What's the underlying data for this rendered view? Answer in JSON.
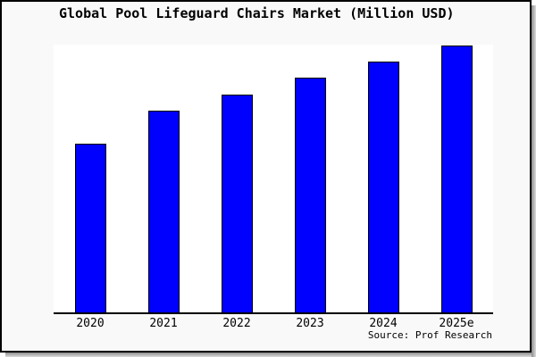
{
  "chart_data": {
    "type": "bar",
    "title": "Global Pool Lifeguard Chairs Market (Million USD)",
    "categories": [
      "2020",
      "2021",
      "2022",
      "2023",
      "2024",
      "2025e"
    ],
    "values": [
      63.2,
      75.5,
      81.8,
      88,
      94,
      100
    ],
    "value_basis": "relative units estimated from bar heights; 2025e = 100 (no y-axis shown)",
    "xlabel": "",
    "ylabel": "",
    "ylim": [
      0,
      100
    ],
    "grid": false,
    "legend": "none",
    "bar_color": "#0000ff",
    "bar_border_color": "#000000"
  },
  "source": {
    "text": "Source: Prof Research"
  },
  "colors": {
    "figure_background": "#f9f9f9",
    "plot_background": "#ffffff",
    "frame_border": "#000000",
    "axis_line": "#000000",
    "text": "#000000"
  }
}
